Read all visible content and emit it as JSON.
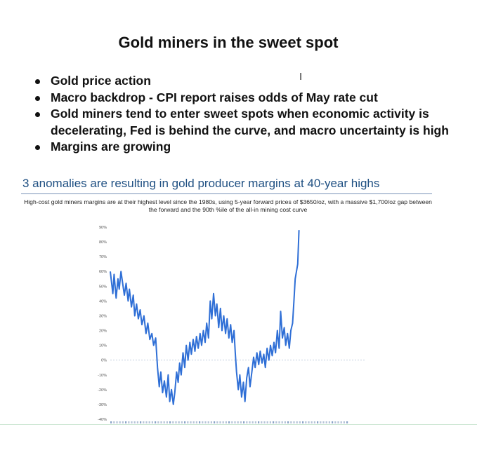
{
  "slide": {
    "title": "Gold miners in the sweet spot",
    "cursor_glyph": "I",
    "bullets": [
      "Gold price action",
      "Macro backdrop - CPI report raises odds of May rate cut",
      "Gold miners tend to enter sweet spots when economic activity is decelerating, Fed is behind the curve, and macro uncertainty is high",
      "Margins are growing"
    ]
  },
  "chart_data": {
    "type": "line",
    "title": "3 anomalies are resulting in gold producer margins at 40-year highs",
    "subtitle": "High-cost gold miners margins are at their highest level since the 1980s, using 5-year forward prices of $3650/oz, with a massive $1,700/oz gap between the forward and the 90th %ile of the all-in mining cost curve",
    "xlabel": "",
    "ylabel": "",
    "y_tick_labels": [
      "90%",
      "80%",
      "70%",
      "60%",
      "50%",
      "40%",
      "30%",
      "20%",
      "10%",
      "0%",
      "-10%",
      "-20%",
      "-30%",
      "-40%"
    ],
    "ylim": [
      -40,
      90
    ],
    "x_range": [
      0,
      100
    ],
    "zero_line": true,
    "grid": false,
    "line_color": "#2f6fd6",
    "series": [
      {
        "values": [
          [
            0,
            60
          ],
          [
            1,
            45
          ],
          [
            1.5,
            58
          ],
          [
            2.3,
            42
          ],
          [
            3,
            55
          ],
          [
            3.5,
            48
          ],
          [
            4.2,
            60
          ],
          [
            5,
            50
          ],
          [
            5.5,
            44
          ],
          [
            6.2,
            52
          ],
          [
            7,
            40
          ],
          [
            7.5,
            48
          ],
          [
            8.3,
            36
          ],
          [
            9,
            44
          ],
          [
            9.6,
            30
          ],
          [
            10.3,
            38
          ],
          [
            11,
            28
          ],
          [
            11.7,
            34
          ],
          [
            12.4,
            24
          ],
          [
            13.2,
            30
          ],
          [
            14,
            18
          ],
          [
            14.7,
            25
          ],
          [
            15.5,
            14
          ],
          [
            16.3,
            18
          ],
          [
            17,
            10
          ],
          [
            17.8,
            15
          ],
          [
            18.5,
            -5
          ],
          [
            19.2,
            -18
          ],
          [
            19.8,
            -8
          ],
          [
            20.5,
            -22
          ],
          [
            21.2,
            -14
          ],
          [
            22,
            -25
          ],
          [
            22.7,
            -10
          ],
          [
            23.3,
            -28
          ],
          [
            24,
            -20
          ],
          [
            24.7,
            -30
          ],
          [
            25.3,
            -22
          ],
          [
            26,
            -8
          ],
          [
            26.6,
            -15
          ],
          [
            27.2,
            -2
          ],
          [
            27.8,
            -10
          ],
          [
            28.5,
            5
          ],
          [
            29.2,
            -5
          ],
          [
            29.8,
            10
          ],
          [
            30.5,
            0
          ],
          [
            31.2,
            12
          ],
          [
            31.8,
            4
          ],
          [
            32.5,
            14
          ],
          [
            33.2,
            6
          ],
          [
            33.8,
            16
          ],
          [
            34.5,
            8
          ],
          [
            35.2,
            18
          ],
          [
            35.8,
            10
          ],
          [
            36.5,
            20
          ],
          [
            37.2,
            12
          ],
          [
            37.8,
            25
          ],
          [
            38.5,
            15
          ],
          [
            39.2,
            40
          ],
          [
            39.8,
            28
          ],
          [
            40.5,
            45
          ],
          [
            41.2,
            30
          ],
          [
            41.8,
            38
          ],
          [
            42.5,
            22
          ],
          [
            43.2,
            35
          ],
          [
            43.8,
            20
          ],
          [
            44.5,
            30
          ],
          [
            45.2,
            18
          ],
          [
            45.8,
            28
          ],
          [
            46.5,
            15
          ],
          [
            47.2,
            24
          ],
          [
            47.8,
            12
          ],
          [
            48.5,
            20
          ],
          [
            49,
            5
          ],
          [
            49.5,
            -8
          ],
          [
            50.2,
            -20
          ],
          [
            50.8,
            -10
          ],
          [
            51.5,
            -25
          ],
          [
            52.2,
            -15
          ],
          [
            52.8,
            -28
          ],
          [
            53.5,
            -12
          ],
          [
            54.2,
            -5
          ],
          [
            54.8,
            -18
          ],
          [
            55.5,
            -8
          ],
          [
            56.2,
            2
          ],
          [
            56.8,
            -5
          ],
          [
            57.5,
            5
          ],
          [
            58.2,
            -3
          ],
          [
            58.8,
            6
          ],
          [
            59.5,
            -2
          ],
          [
            60.2,
            4
          ],
          [
            60.8,
            -5
          ],
          [
            61.5,
            8
          ],
          [
            62.2,
            0
          ],
          [
            62.8,
            10
          ],
          [
            63.5,
            3
          ],
          [
            64.2,
            12
          ],
          [
            64.8,
            5
          ],
          [
            65.5,
            20
          ],
          [
            66.2,
            8
          ],
          [
            66.8,
            33
          ],
          [
            67.5,
            15
          ],
          [
            68.2,
            22
          ],
          [
            68.8,
            10
          ],
          [
            69.5,
            18
          ],
          [
            70.2,
            8
          ],
          [
            70.8,
            20
          ],
          [
            71.5,
            25
          ],
          [
            72,
            40
          ],
          [
            72.5,
            55
          ],
          [
            73,
            60
          ],
          [
            73.5,
            65
          ],
          [
            74,
            88
          ]
        ]
      }
    ]
  }
}
